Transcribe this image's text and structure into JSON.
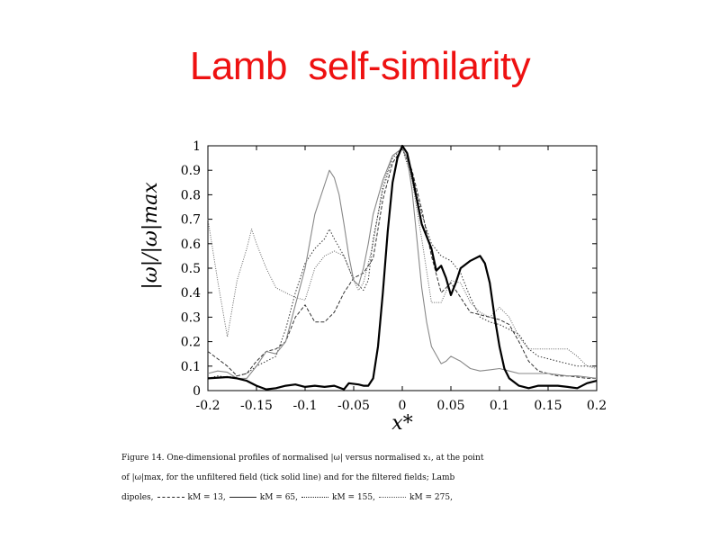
{
  "slide": {
    "title": "Lamb  self-similarity"
  },
  "chart_data": {
    "type": "line",
    "xlabel": "x*",
    "ylabel": "|ω|/|ω|max",
    "xlim": [
      -0.2,
      0.2
    ],
    "ylim": [
      0,
      1
    ],
    "x_ticks": [
      "-0.2",
      "-0.15",
      "-0.1",
      "-0.05",
      "0",
      "0.05",
      "0.1",
      "0.15",
      "0.2"
    ],
    "y_ticks": [
      "0",
      "0.1",
      "0.2",
      "0.3",
      "0.4",
      "0.5",
      "0.6",
      "0.7",
      "0.8",
      "0.9",
      "1"
    ],
    "grid": false,
    "series": [
      {
        "style": "thick-solid",
        "color": "#000000",
        "points": [
          [
            -0.2,
            0.05
          ],
          [
            -0.18,
            0.055
          ],
          [
            -0.17,
            0.05
          ],
          [
            -0.16,
            0.04
          ],
          [
            -0.15,
            0.02
          ],
          [
            -0.14,
            0.005
          ],
          [
            -0.13,
            0.01
          ],
          [
            -0.12,
            0.02
          ],
          [
            -0.11,
            0.025
          ],
          [
            -0.1,
            0.015
          ],
          [
            -0.09,
            0.02
          ],
          [
            -0.08,
            0.015
          ],
          [
            -0.07,
            0.02
          ],
          [
            -0.06,
            0.005
          ],
          [
            -0.055,
            0.03
          ],
          [
            -0.045,
            0.025
          ],
          [
            -0.04,
            0.02
          ],
          [
            -0.035,
            0.02
          ],
          [
            -0.03,
            0.05
          ],
          [
            -0.025,
            0.18
          ],
          [
            -0.02,
            0.4
          ],
          [
            -0.015,
            0.65
          ],
          [
            -0.01,
            0.85
          ],
          [
            -0.005,
            0.95
          ],
          [
            0,
            1.0
          ],
          [
            0.005,
            0.97
          ],
          [
            0.01,
            0.88
          ],
          [
            0.015,
            0.78
          ],
          [
            0.02,
            0.68
          ],
          [
            0.03,
            0.58
          ],
          [
            0.035,
            0.49
          ],
          [
            0.04,
            0.51
          ],
          [
            0.045,
            0.46
          ],
          [
            0.05,
            0.39
          ],
          [
            0.055,
            0.44
          ],
          [
            0.06,
            0.5
          ],
          [
            0.07,
            0.53
          ],
          [
            0.08,
            0.55
          ],
          [
            0.085,
            0.52
          ],
          [
            0.09,
            0.44
          ],
          [
            0.095,
            0.3
          ],
          [
            0.1,
            0.18
          ],
          [
            0.105,
            0.09
          ],
          [
            0.11,
            0.05
          ],
          [
            0.12,
            0.02
          ],
          [
            0.13,
            0.01
          ],
          [
            0.14,
            0.02
          ],
          [
            0.15,
            0.02
          ],
          [
            0.16,
            0.02
          ],
          [
            0.17,
            0.015
          ],
          [
            0.18,
            0.01
          ],
          [
            0.19,
            0.03
          ],
          [
            0.2,
            0.04
          ]
        ]
      },
      {
        "style": "solid",
        "color": "#888888",
        "points": [
          [
            -0.2,
            0.07
          ],
          [
            -0.19,
            0.08
          ],
          [
            -0.18,
            0.075
          ],
          [
            -0.17,
            0.05
          ],
          [
            -0.16,
            0.05
          ],
          [
            -0.15,
            0.1
          ],
          [
            -0.14,
            0.16
          ],
          [
            -0.13,
            0.15
          ],
          [
            -0.12,
            0.2
          ],
          [
            -0.11,
            0.35
          ],
          [
            -0.1,
            0.5
          ],
          [
            -0.09,
            0.72
          ],
          [
            -0.08,
            0.84
          ],
          [
            -0.075,
            0.9
          ],
          [
            -0.07,
            0.87
          ],
          [
            -0.065,
            0.8
          ],
          [
            -0.06,
            0.68
          ],
          [
            -0.055,
            0.55
          ],
          [
            -0.05,
            0.45
          ],
          [
            -0.045,
            0.43
          ],
          [
            -0.04,
            0.5
          ],
          [
            -0.035,
            0.6
          ],
          [
            -0.03,
            0.72
          ],
          [
            -0.02,
            0.86
          ],
          [
            -0.01,
            0.96
          ],
          [
            0,
            0.99
          ],
          [
            0.005,
            0.95
          ],
          [
            0.01,
            0.82
          ],
          [
            0.015,
            0.62
          ],
          [
            0.02,
            0.42
          ],
          [
            0.025,
            0.28
          ],
          [
            0.03,
            0.18
          ],
          [
            0.04,
            0.11
          ],
          [
            0.045,
            0.12
          ],
          [
            0.05,
            0.14
          ],
          [
            0.06,
            0.12
          ],
          [
            0.07,
            0.09
          ],
          [
            0.08,
            0.08
          ],
          [
            0.09,
            0.085
          ],
          [
            0.1,
            0.09
          ],
          [
            0.11,
            0.08
          ],
          [
            0.12,
            0.07
          ],
          [
            0.13,
            0.07
          ],
          [
            0.14,
            0.07
          ],
          [
            0.15,
            0.07
          ],
          [
            0.16,
            0.065
          ],
          [
            0.17,
            0.06
          ],
          [
            0.18,
            0.06
          ],
          [
            0.19,
            0.055
          ],
          [
            0.2,
            0.05
          ]
        ]
      },
      {
        "style": "dashed",
        "color": "#333333",
        "points": [
          [
            -0.2,
            0.16
          ],
          [
            -0.19,
            0.13
          ],
          [
            -0.18,
            0.1
          ],
          [
            -0.17,
            0.06
          ],
          [
            -0.16,
            0.07
          ],
          [
            -0.15,
            0.12
          ],
          [
            -0.14,
            0.16
          ],
          [
            -0.13,
            0.17
          ],
          [
            -0.12,
            0.2
          ],
          [
            -0.11,
            0.3
          ],
          [
            -0.1,
            0.35
          ],
          [
            -0.09,
            0.28
          ],
          [
            -0.08,
            0.28
          ],
          [
            -0.07,
            0.32
          ],
          [
            -0.06,
            0.4
          ],
          [
            -0.05,
            0.46
          ],
          [
            -0.04,
            0.48
          ],
          [
            -0.03,
            0.54
          ],
          [
            -0.02,
            0.78
          ],
          [
            -0.01,
            0.93
          ],
          [
            0,
            0.99
          ],
          [
            0.01,
            0.9
          ],
          [
            0.02,
            0.74
          ],
          [
            0.03,
            0.55
          ],
          [
            0.04,
            0.4
          ],
          [
            0.05,
            0.44
          ],
          [
            0.06,
            0.38
          ],
          [
            0.07,
            0.32
          ],
          [
            0.08,
            0.31
          ],
          [
            0.09,
            0.3
          ],
          [
            0.1,
            0.29
          ],
          [
            0.11,
            0.27
          ],
          [
            0.12,
            0.2
          ],
          [
            0.13,
            0.12
          ],
          [
            0.14,
            0.08
          ],
          [
            0.15,
            0.07
          ],
          [
            0.16,
            0.06
          ],
          [
            0.17,
            0.06
          ],
          [
            0.18,
            0.055
          ],
          [
            0.19,
            0.05
          ],
          [
            0.2,
            0.05
          ]
        ]
      },
      {
        "style": "dotted",
        "color": "#333333",
        "points": [
          [
            -0.2,
            0.05
          ],
          [
            -0.19,
            0.06
          ],
          [
            -0.18,
            0.055
          ],
          [
            -0.17,
            0.06
          ],
          [
            -0.16,
            0.07
          ],
          [
            -0.15,
            0.1
          ],
          [
            -0.14,
            0.12
          ],
          [
            -0.13,
            0.14
          ],
          [
            -0.12,
            0.25
          ],
          [
            -0.11,
            0.4
          ],
          [
            -0.1,
            0.52
          ],
          [
            -0.09,
            0.58
          ],
          [
            -0.08,
            0.62
          ],
          [
            -0.075,
            0.66
          ],
          [
            -0.07,
            0.62
          ],
          [
            -0.06,
            0.55
          ],
          [
            -0.05,
            0.45
          ],
          [
            -0.04,
            0.41
          ],
          [
            -0.035,
            0.45
          ],
          [
            -0.03,
            0.62
          ],
          [
            -0.02,
            0.82
          ],
          [
            -0.01,
            0.95
          ],
          [
            0,
            0.99
          ],
          [
            0.01,
            0.88
          ],
          [
            0.02,
            0.72
          ],
          [
            0.03,
            0.6
          ],
          [
            0.04,
            0.55
          ],
          [
            0.05,
            0.53
          ],
          [
            0.06,
            0.48
          ],
          [
            0.07,
            0.38
          ],
          [
            0.08,
            0.3
          ],
          [
            0.09,
            0.28
          ],
          [
            0.1,
            0.27
          ],
          [
            0.11,
            0.25
          ],
          [
            0.12,
            0.23
          ],
          [
            0.13,
            0.17
          ],
          [
            0.14,
            0.14
          ],
          [
            0.15,
            0.13
          ],
          [
            0.16,
            0.12
          ],
          [
            0.17,
            0.11
          ],
          [
            0.18,
            0.1
          ],
          [
            0.19,
            0.1
          ],
          [
            0.2,
            0.1
          ]
        ]
      },
      {
        "style": "fine-dotted",
        "color": "#666666",
        "points": [
          [
            -0.2,
            0.7
          ],
          [
            -0.19,
            0.45
          ],
          [
            -0.18,
            0.22
          ],
          [
            -0.17,
            0.45
          ],
          [
            -0.16,
            0.58
          ],
          [
            -0.155,
            0.66
          ],
          [
            -0.15,
            0.6
          ],
          [
            -0.14,
            0.5
          ],
          [
            -0.13,
            0.42
          ],
          [
            -0.12,
            0.4
          ],
          [
            -0.11,
            0.38
          ],
          [
            -0.1,
            0.37
          ],
          [
            -0.09,
            0.5
          ],
          [
            -0.08,
            0.55
          ],
          [
            -0.07,
            0.57
          ],
          [
            -0.06,
            0.55
          ],
          [
            -0.05,
            0.45
          ],
          [
            -0.045,
            0.41
          ],
          [
            -0.04,
            0.44
          ],
          [
            -0.03,
            0.6
          ],
          [
            -0.02,
            0.84
          ],
          [
            -0.01,
            0.96
          ],
          [
            0,
            0.99
          ],
          [
            0.01,
            0.86
          ],
          [
            0.02,
            0.62
          ],
          [
            0.03,
            0.36
          ],
          [
            0.04,
            0.36
          ],
          [
            0.05,
            0.45
          ],
          [
            0.06,
            0.44
          ],
          [
            0.07,
            0.36
          ],
          [
            0.08,
            0.32
          ],
          [
            0.09,
            0.3
          ],
          [
            0.1,
            0.34
          ],
          [
            0.11,
            0.3
          ],
          [
            0.12,
            0.22
          ],
          [
            0.13,
            0.17
          ],
          [
            0.14,
            0.17
          ],
          [
            0.15,
            0.17
          ],
          [
            0.16,
            0.17
          ],
          [
            0.17,
            0.17
          ],
          [
            0.18,
            0.14
          ],
          [
            0.19,
            0.1
          ],
          [
            0.2,
            0.09
          ]
        ]
      }
    ]
  },
  "caption": {
    "line1": "Figure 14. One-dimensional profiles of normalised |ω| versus normalised x₁, at the point",
    "line2": "of |ω|max, for the unfiltered field (tick solid line) and for the filtered fields; Lamb",
    "line3_prefix": "dipoles,",
    "legend": [
      {
        "style": "dashed",
        "label": "kM = 13,"
      },
      {
        "style": "solid",
        "label": "kM = 65,"
      },
      {
        "style": "dotted",
        "label": "kM = 155,"
      },
      {
        "style": "fine-dotted",
        "label": "kM = 275,"
      }
    ]
  }
}
